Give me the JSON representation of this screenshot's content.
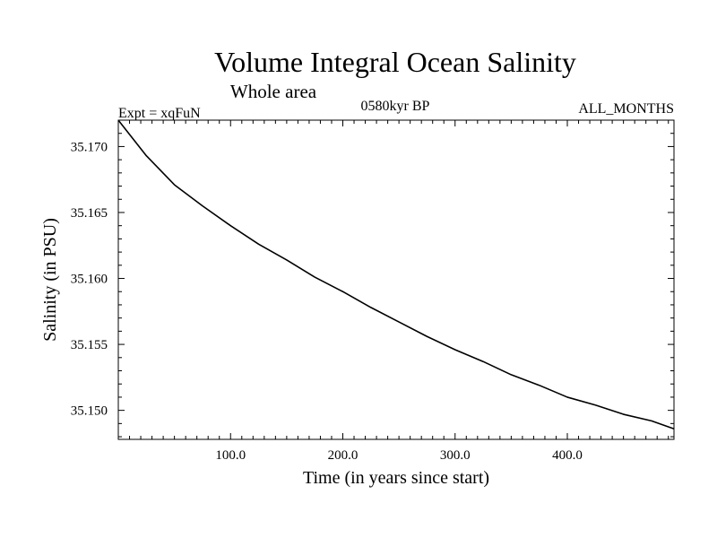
{
  "chart_data": {
    "type": "line",
    "title": "Volume Integral Ocean Salinity",
    "subtitle": "Whole area",
    "left_label": "Expt = xqFuN",
    "center_label": "0580kyr BP",
    "right_label": "ALL_MONTHS",
    "xlabel": "Time (in years since start)",
    "ylabel": "Salinity (in PSU)",
    "xlim": [
      0,
      495
    ],
    "ylim": [
      35.1478,
      35.172
    ],
    "x_ticks": [
      100,
      200,
      300,
      400
    ],
    "x_tick_labels": [
      "100.0",
      "200.0",
      "300.0",
      "400.0"
    ],
    "y_ticks": [
      35.15,
      35.155,
      35.16,
      35.165,
      35.17
    ],
    "y_tick_labels": [
      "35.150",
      "35.155",
      "35.160",
      "35.165",
      "35.170"
    ],
    "grid": false,
    "series": [
      {
        "name": "Salinity",
        "color": "#000000",
        "x": [
          0,
          25,
          50,
          75,
          100,
          125,
          150,
          175,
          200,
          225,
          250,
          275,
          300,
          325,
          350,
          375,
          400,
          425,
          450,
          475,
          495
        ],
        "y": [
          35.172,
          35.1693,
          35.1671,
          35.1655,
          35.164,
          35.1626,
          35.1614,
          35.1601,
          35.159,
          35.1578,
          35.1567,
          35.1556,
          35.1546,
          35.1537,
          35.1527,
          35.1519,
          35.151,
          35.1504,
          35.1497,
          35.1492,
          35.1486
        ]
      }
    ]
  }
}
